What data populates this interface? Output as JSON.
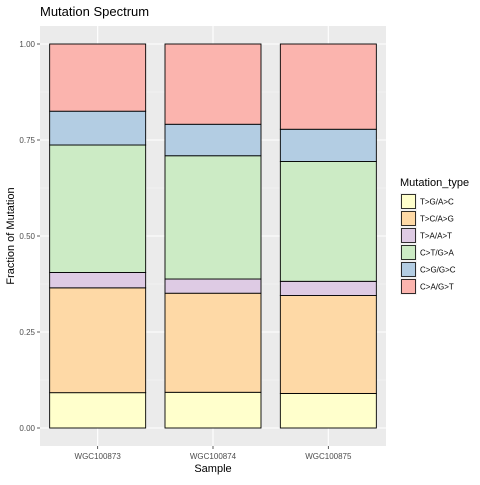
{
  "chart_data": {
    "type": "bar",
    "stacked": true,
    "title": "Mutation Spectrum",
    "xlabel": "Sample",
    "ylabel": "Fraction of Mutation",
    "ylim": [
      0,
      1
    ],
    "y_ticks": [
      "0.00",
      "0.25",
      "0.50",
      "0.75",
      "1.00"
    ],
    "y_tick_values": [
      0,
      0.25,
      0.5,
      0.75,
      1.0
    ],
    "grid": true,
    "legend_placement": "right",
    "legend_title": "Mutation_type",
    "categories": [
      "WGC100873",
      "WGC100874",
      "WGC100875"
    ],
    "series": [
      {
        "name": "T>G/A>C",
        "color": "#FFFFCC",
        "values": [
          0.092,
          0.093,
          0.09
        ]
      },
      {
        "name": "T>C/A>G",
        "color": "#FED9A6",
        "values": [
          0.273,
          0.258,
          0.255
        ]
      },
      {
        "name": "T>A/A>T",
        "color": "#DECBE4",
        "values": [
          0.04,
          0.037,
          0.037
        ]
      },
      {
        "name": "C>T/G>A",
        "color": "#CCEBC5",
        "values": [
          0.332,
          0.321,
          0.312
        ]
      },
      {
        "name": "C>G/G>C",
        "color": "#B3CDE3",
        "values": [
          0.088,
          0.082,
          0.084
        ]
      },
      {
        "name": "C>A/G>T",
        "color": "#FBB4AE",
        "values": [
          0.175,
          0.209,
          0.222
        ]
      }
    ],
    "colors": {
      "panel_background": "#EBEBEB",
      "grid_major": "#FFFFFF",
      "grid_minor": "#F5F5F5",
      "bar_outline": "#000000",
      "axis_text": "#4D4D4D"
    }
  }
}
